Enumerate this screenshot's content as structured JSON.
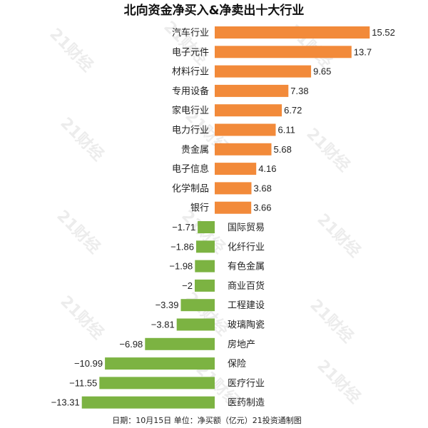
{
  "chart_data": {
    "type": "bar",
    "orientation": "horizontal",
    "title": "北向资金净买入&净卖出十大行业",
    "categories": [
      "汽车行业",
      "电子元件",
      "材料行业",
      "专用设备",
      "家电行业",
      "电力行业",
      "贵金属",
      "电子信息",
      "化学制品",
      "银行",
      "国际贸易",
      "化纤行业",
      "有色金属",
      "商业百货",
      "工程建设",
      "玻璃陶瓷",
      "房地产",
      "保险",
      "医疗行业",
      "医药制造"
    ],
    "values": [
      15.52,
      13.7,
      9.65,
      7.38,
      6.72,
      6.11,
      5.68,
      4.16,
      3.68,
      3.66,
      -1.71,
      -1.86,
      -1.98,
      -2,
      -3.39,
      -3.81,
      -6.98,
      -10.99,
      -11.55,
      -13.31
    ],
    "value_labels": [
      "15.52",
      "13.7",
      "9.65",
      "7.38",
      "6.72",
      "6.11",
      "5.68",
      "4.16",
      "3.68",
      "3.66",
      "−1.71",
      "−1.86",
      "−1.98",
      "−2",
      "−3.39",
      "−3.81",
      "−6.98",
      "−10.99",
      "−11.55",
      "−13.31"
    ],
    "colors": {
      "positive": "#f28a3a",
      "negative": "#7cb342"
    },
    "grid": false,
    "legend": "none"
  },
  "footer": "日期：10月15日 单位：净买额（亿元）21投资通制图",
  "watermark": "21财经"
}
